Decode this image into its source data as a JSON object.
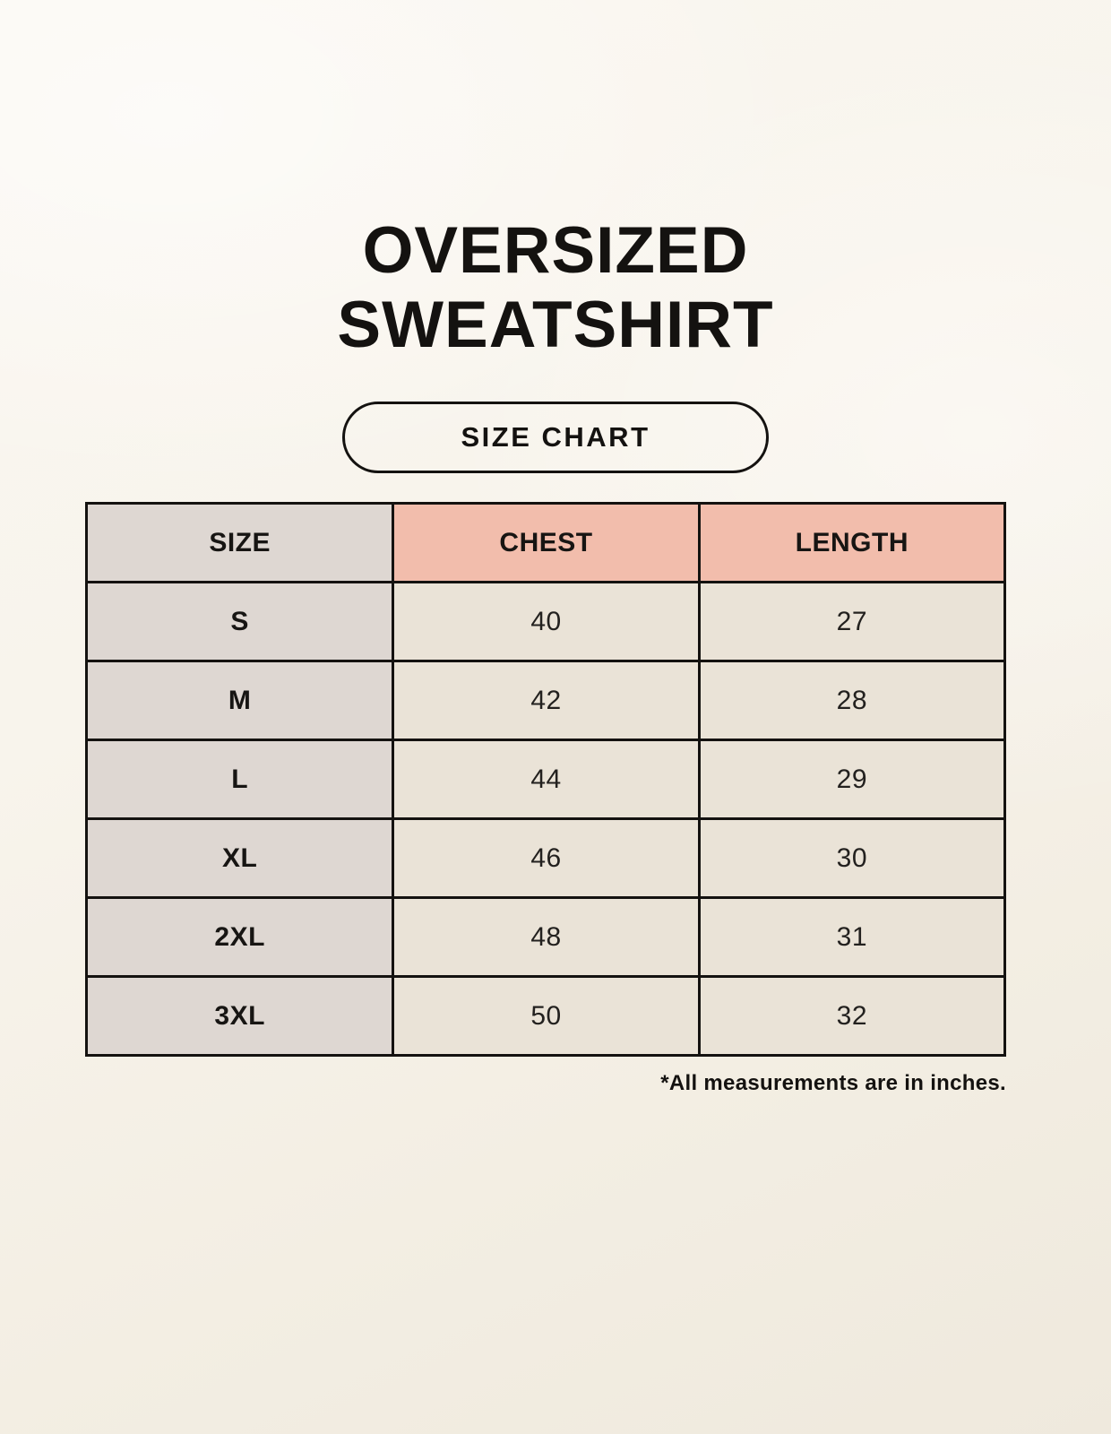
{
  "page": {
    "title_line1": "OVERSIZED",
    "title_line2": "SWEATSHIRT",
    "button_label": "SIZE CHART",
    "footnote": "*All measurements are in inches."
  },
  "size_table": {
    "headers": [
      "SIZE",
      "CHEST",
      "LENGTH"
    ],
    "rows": [
      {
        "size": "S",
        "chest": "40",
        "length": "27"
      },
      {
        "size": "M",
        "chest": "42",
        "length": "28"
      },
      {
        "size": "L",
        "chest": "44",
        "length": "29"
      },
      {
        "size": "XL",
        "chest": "46",
        "length": "30"
      },
      {
        "size": "2XL",
        "chest": "48",
        "length": "31"
      },
      {
        "size": "3XL",
        "chest": "50",
        "length": "32"
      }
    ],
    "units": "inches"
  },
  "colors": {
    "background": "#f7f3ea",
    "size_column_bg": "#ded7d2",
    "measure_header_bg": "#f2bdac",
    "data_cell_bg": "#eae3d7",
    "border": "#141210",
    "text": "#141210"
  }
}
